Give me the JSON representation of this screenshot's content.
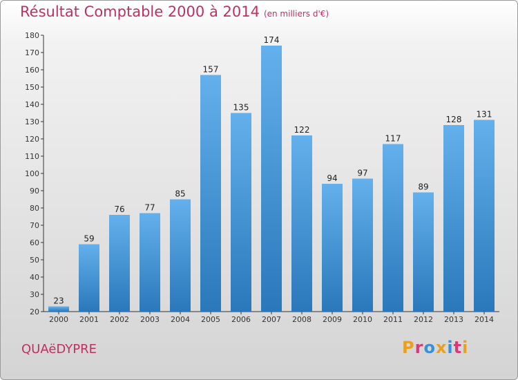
{
  "header": {
    "title": "Résultat Comptable 2000 à 2014",
    "subtitle": "(en milliers d'€)"
  },
  "footer": {
    "commune": "QUAëDYPRE",
    "logo": "Proxiti",
    "logo_colors": [
      "#e8a020",
      "#d63a7a",
      "#3a8fd6",
      "#e8a020",
      "#3a8fd6",
      "#d63a7a",
      "#e8a020"
    ]
  },
  "colors": {
    "bar_top": "#64b0ec",
    "bar_bottom": "#2a78ba",
    "title": "#c0305e"
  },
  "chart_data": {
    "type": "bar",
    "title": "Résultat Comptable 2000 à 2014",
    "subtitle": "(en milliers d'€)",
    "xlabel": "",
    "ylabel": "",
    "categories": [
      "2000",
      "2001",
      "2002",
      "2003",
      "2004",
      "2005",
      "2006",
      "2007",
      "2008",
      "2009",
      "2010",
      "2011",
      "2012",
      "2013",
      "2014"
    ],
    "values": [
      23,
      59,
      76,
      77,
      85,
      157,
      135,
      174,
      122,
      94,
      97,
      117,
      89,
      128,
      131
    ],
    "ylim": [
      20,
      180
    ],
    "yticks": [
      20,
      30,
      40,
      50,
      60,
      70,
      80,
      90,
      100,
      110,
      120,
      130,
      140,
      150,
      160,
      170,
      180
    ],
    "grid": false,
    "legend": "none"
  }
}
